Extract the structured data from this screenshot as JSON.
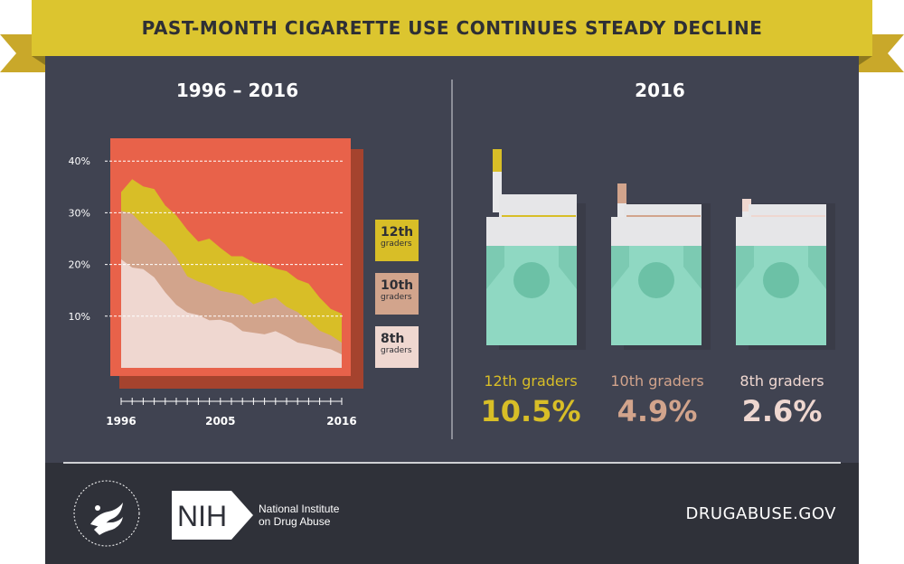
{
  "title": "PAST-MONTH CIGARETTE USE CONTINUES STEADY DECLINE",
  "left_panel": {
    "title": "1996 – 2016"
  },
  "right_panel": {
    "title": "2016"
  },
  "legend": [
    {
      "grade": "12th",
      "word": "graders",
      "color": "#d8be27"
    },
    {
      "grade": "10th",
      "word": "graders",
      "color": "#d2a48c"
    },
    {
      "grade": "8th",
      "word": "graders",
      "color": "#efd7d0"
    }
  ],
  "chart_data": {
    "type": "area",
    "title": "1996 – 2016",
    "x": [
      1996,
      1997,
      1998,
      1999,
      2000,
      2001,
      2002,
      2003,
      2004,
      2005,
      2006,
      2007,
      2008,
      2009,
      2010,
      2011,
      2012,
      2013,
      2014,
      2015,
      2016
    ],
    "x_tick_labels": [
      "1996",
      "2005",
      "2016"
    ],
    "y_tick_labels": [
      "10%",
      "20%",
      "30%",
      "40%"
    ],
    "ylim": [
      0,
      45
    ],
    "series": [
      {
        "name": "12th graders",
        "color": "#d8be27",
        "values": [
          34.0,
          36.5,
          35.1,
          34.6,
          31.4,
          29.5,
          26.7,
          24.4,
          25.0,
          23.2,
          21.6,
          21.6,
          20.4,
          20.1,
          19.2,
          18.7,
          17.1,
          16.3,
          13.6,
          11.4,
          10.5
        ]
      },
      {
        "name": "10th graders",
        "color": "#d2a48c",
        "values": [
          30.4,
          29.8,
          27.6,
          25.7,
          23.9,
          21.3,
          17.7,
          16.7,
          16.0,
          14.9,
          14.5,
          14.0,
          12.3,
          13.1,
          13.6,
          11.8,
          10.8,
          9.1,
          7.2,
          6.3,
          4.9
        ]
      },
      {
        "name": "8th graders",
        "color": "#efd7d0",
        "values": [
          21.0,
          19.4,
          19.1,
          17.5,
          14.6,
          12.2,
          10.7,
          10.2,
          9.2,
          9.3,
          8.7,
          7.1,
          6.8,
          6.5,
          7.1,
          6.1,
          4.9,
          4.5,
          4.0,
          3.6,
          2.6
        ]
      }
    ]
  },
  "packs_2016": [
    {
      "label": "12th graders",
      "value": "10.5%",
      "color": "#d8be27"
    },
    {
      "label": "10th graders",
      "value": "4.9%",
      "color": "#d2a48c"
    },
    {
      "label": "8th graders",
      "value": "2.6%",
      "color": "#efd7d0"
    }
  ],
  "footer": {
    "nih_text": "NIH",
    "agency_line1": "National Institute",
    "agency_line2": "on Drug Abuse",
    "site": "DRUGABUSE.GOV"
  }
}
